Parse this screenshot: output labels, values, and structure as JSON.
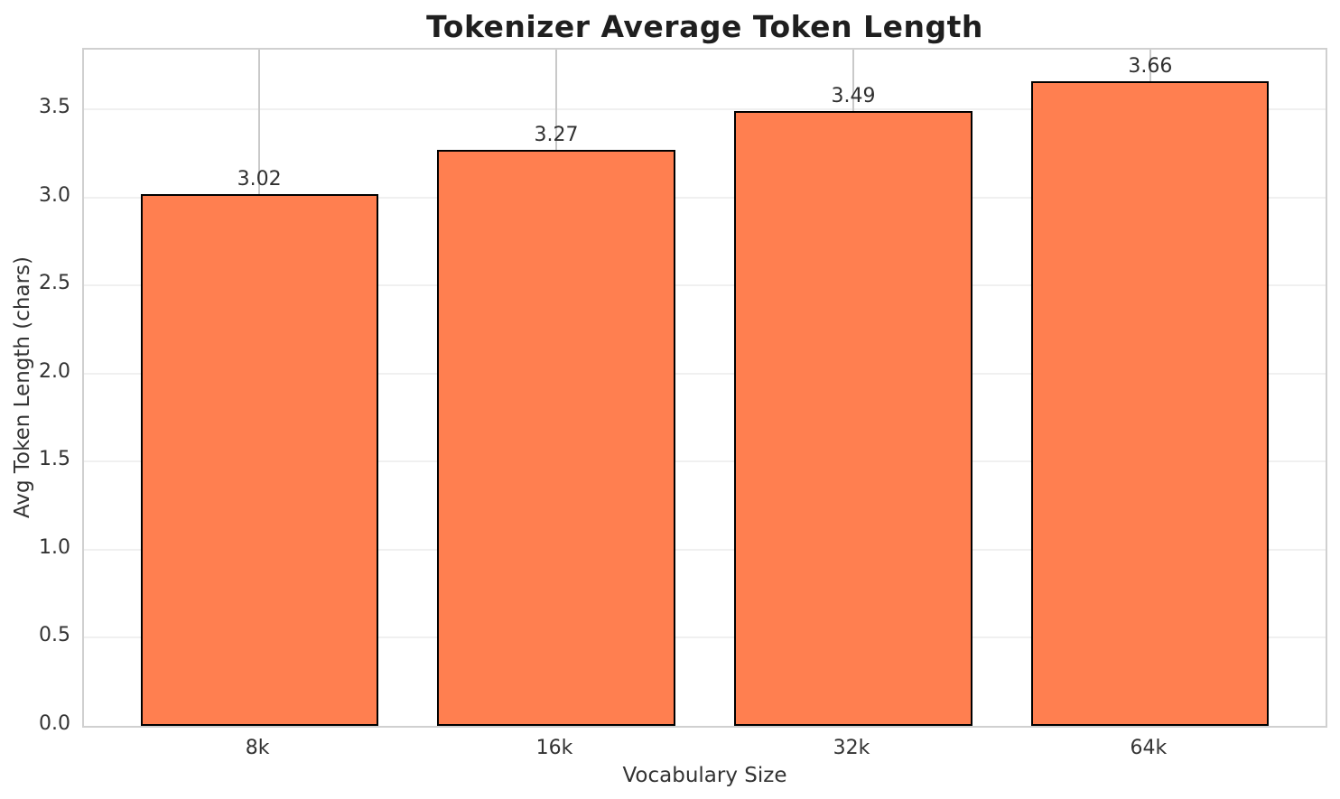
{
  "chart_data": {
    "type": "bar",
    "title": "Tokenizer Average Token Length",
    "xlabel": "Vocabulary Size",
    "ylabel": "Avg Token Length (chars)",
    "categories": [
      "8k",
      "16k",
      "32k",
      "64k"
    ],
    "values": [
      3.02,
      3.27,
      3.49,
      3.66
    ],
    "value_labels": [
      "3.02",
      "3.27",
      "3.49",
      "3.66"
    ],
    "yticks": [
      0.0,
      0.5,
      1.0,
      1.5,
      2.0,
      2.5,
      3.0,
      3.5
    ],
    "ytick_labels": [
      "0.0",
      "0.5",
      "1.0",
      "1.5",
      "2.0",
      "2.5",
      "3.0",
      "3.5"
    ],
    "ylim": [
      0,
      3.84
    ],
    "xlim": [
      -0.59,
      3.59
    ],
    "bar_width": 0.8,
    "grid": true,
    "legend": null,
    "style": {
      "bar_fill": "#FF7F50",
      "bar_edge": "#000000",
      "grid_h_color": "#f0f0f0",
      "grid_v_color": "#c9c9c9",
      "spine_color": "#d0d0d0",
      "title_color": "#1f1f1f",
      "tick_color": "#333333"
    }
  }
}
